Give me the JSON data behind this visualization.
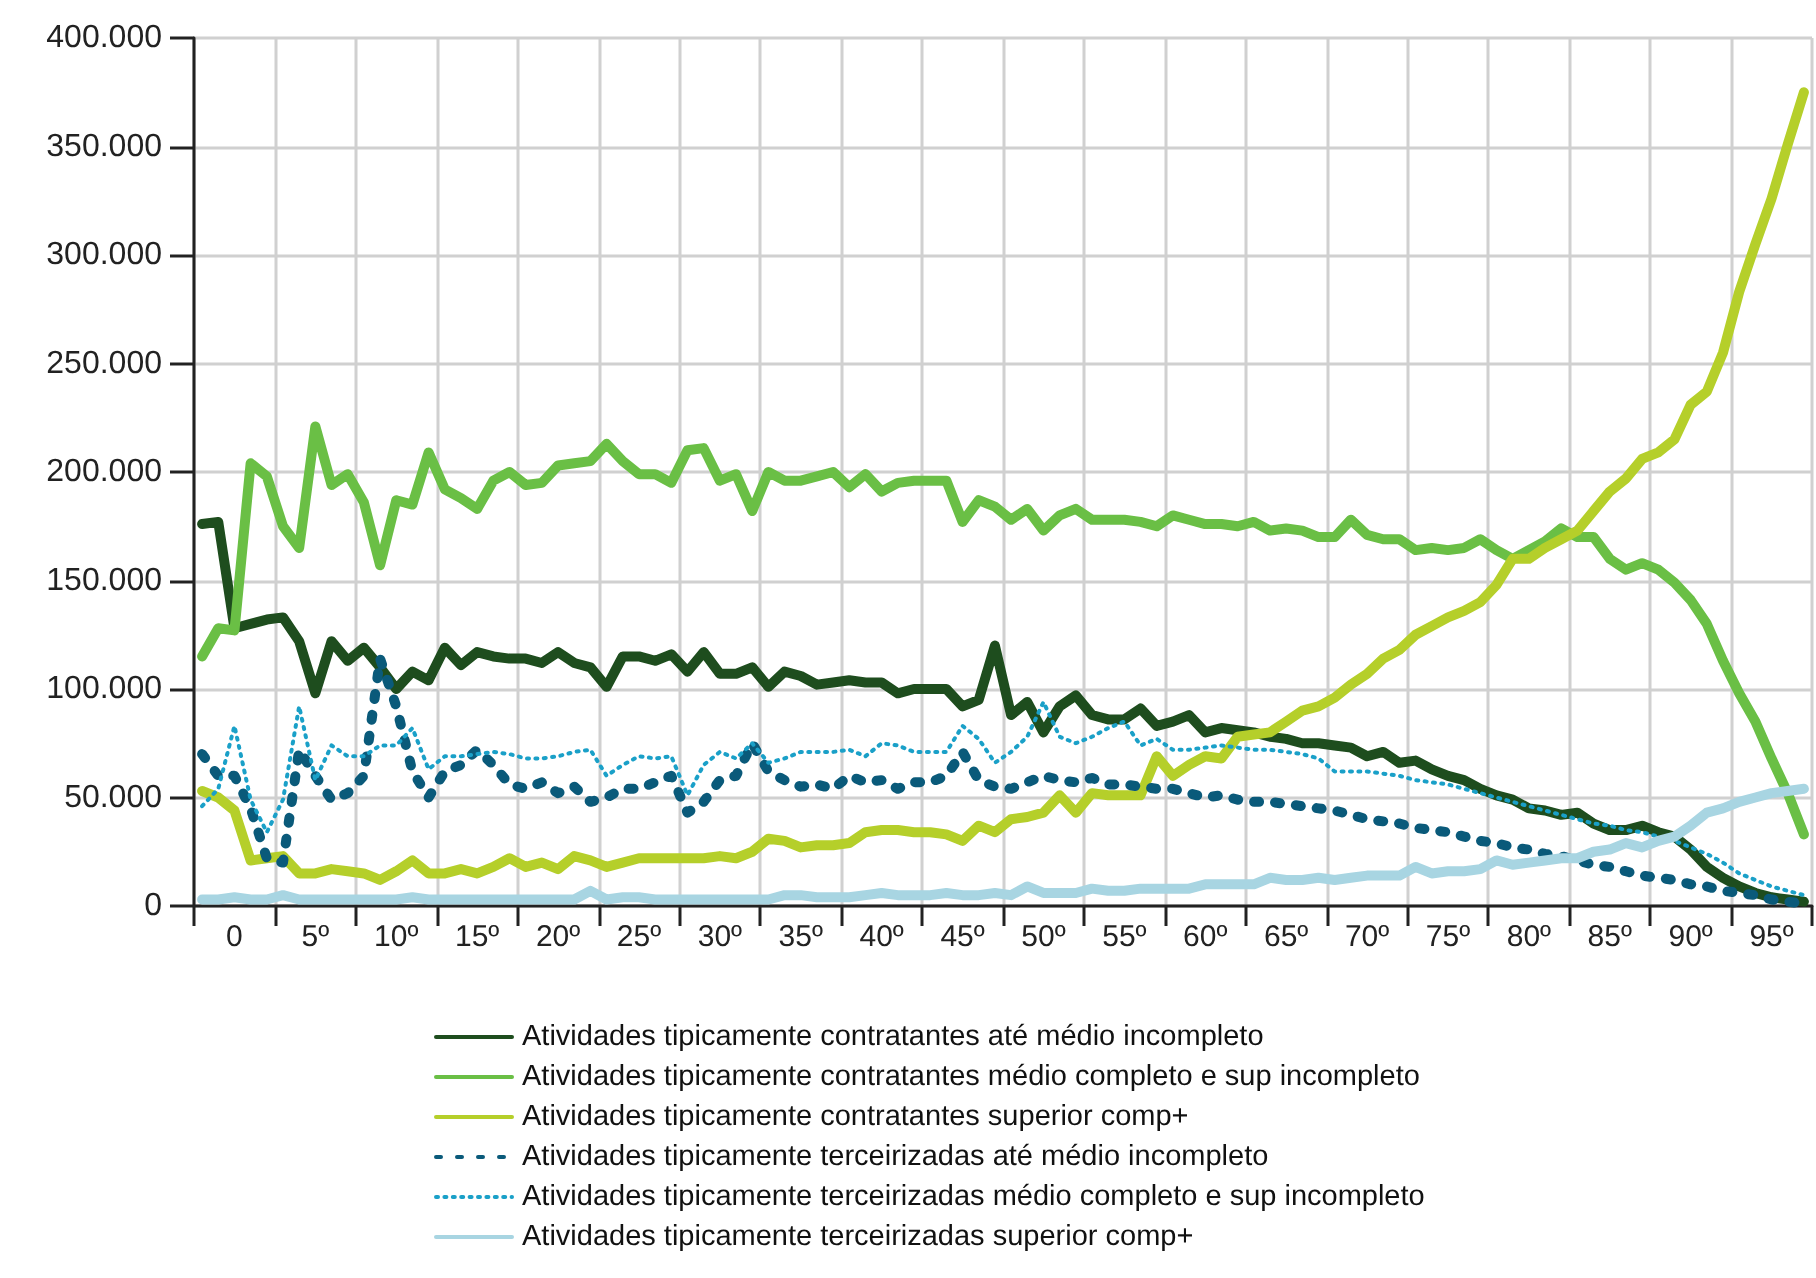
{
  "chart_data": {
    "type": "line",
    "categories": [
      null,
      null,
      "0",
      null,
      null,
      null,
      null,
      "5º",
      null,
      null,
      null,
      null,
      "10º",
      null,
      null,
      null,
      null,
      "15º",
      null,
      null,
      null,
      null,
      "20º",
      null,
      null,
      null,
      null,
      "25º",
      null,
      null,
      null,
      null,
      "30º",
      null,
      null,
      null,
      null,
      "35º",
      null,
      null,
      null,
      null,
      "40º",
      null,
      null,
      null,
      null,
      "45º",
      null,
      null,
      null,
      null,
      "50º",
      null,
      null,
      null,
      null,
      "55º",
      null,
      null,
      null,
      null,
      "60º",
      null,
      null,
      null,
      null,
      "65º",
      null,
      null,
      null,
      null,
      "70º",
      null,
      null,
      null,
      null,
      "75º",
      null,
      null,
      null,
      null,
      "80º",
      null,
      null,
      null,
      null,
      "85º",
      null,
      null,
      null,
      null,
      "90º",
      null,
      null,
      null,
      null,
      "95º",
      null,
      null
    ],
    "ylim": [
      0,
      400000
    ],
    "yticks": [
      {
        "value": 0,
        "label": "0"
      },
      {
        "value": 50000,
        "label": "50.000"
      },
      {
        "value": 100000,
        "label": "100.000"
      },
      {
        "value": 150000,
        "label": "150.000"
      },
      {
        "value": 200000,
        "label": "200.000"
      },
      {
        "value": 250000,
        "label": "250.000"
      },
      {
        "value": 300000,
        "label": "300.000"
      },
      {
        "value": 350000,
        "label": "350.000"
      },
      {
        "value": 400000,
        "label": "400.000"
      }
    ],
    "grid": true,
    "legend": "bottom",
    "marker": "none",
    "series": [
      {
        "name": "Atividades tipicamente contratantes até médio incompleto",
        "color": "#1e4d1e",
        "line_style": "solid",
        "values": [
          176000,
          177000,
          128000,
          130000,
          132000,
          133000,
          122000,
          98000,
          122000,
          113000,
          119000,
          110000,
          100000,
          108000,
          104000,
          119000,
          111000,
          117000,
          115000,
          114000,
          114000,
          112000,
          117000,
          112000,
          110000,
          101000,
          115000,
          115000,
          113000,
          116000,
          108000,
          117000,
          107000,
          107000,
          110000,
          101000,
          108000,
          106000,
          102000,
          103000,
          104000,
          103000,
          103000,
          98000,
          100000,
          100000,
          100000,
          92000,
          95000,
          120000,
          88000,
          94000,
          80000,
          92000,
          97000,
          88000,
          86000,
          86000,
          91000,
          83000,
          85000,
          88000,
          80000,
          82000,
          81000,
          80000,
          78000,
          77000,
          75000,
          75000,
          74000,
          73000,
          69000,
          71000,
          66000,
          67000,
          63000,
          60000,
          58000,
          54000,
          51000,
          49000,
          45000,
          44000,
          42000,
          43000,
          38000,
          35000,
          35000,
          37000,
          34000,
          32000,
          26000,
          18000,
          13000,
          9000,
          6000,
          4000,
          3000,
          2000
        ]
      },
      {
        "name": "Atividades tipicamente contratantes médio completo e sup incompleto",
        "color": "#6abf45",
        "line_style": "solid",
        "values": [
          115000,
          128000,
          127000,
          204000,
          198000,
          175000,
          165000,
          221000,
          194000,
          199000,
          186000,
          157000,
          187000,
          185000,
          209000,
          192000,
          188000,
          183000,
          196000,
          200000,
          194000,
          195000,
          203000,
          204000,
          205000,
          213000,
          205000,
          199000,
          199000,
          195000,
          210000,
          211000,
          196000,
          199000,
          182000,
          200000,
          196000,
          196000,
          198000,
          200000,
          193000,
          199000,
          191000,
          195000,
          196000,
          196000,
          196000,
          177000,
          187000,
          184000,
          178000,
          183000,
          173000,
          180000,
          183000,
          178000,
          178000,
          178000,
          177000,
          175000,
          180000,
          178000,
          176000,
          176000,
          175000,
          177000,
          173000,
          174000,
          173000,
          170000,
          170000,
          178000,
          171000,
          169000,
          169000,
          164000,
          165000,
          164000,
          165000,
          169000,
          164000,
          160000,
          164000,
          168000,
          174000,
          170000,
          170000,
          160000,
          155000,
          158000,
          155000,
          149000,
          141000,
          130000,
          113000,
          98000,
          85000,
          68000,
          52000,
          33000
        ]
      },
      {
        "name": "Atividades tipicamente contratantes superior comp+",
        "color": "#b5cf2a",
        "line_style": "solid",
        "values": [
          53000,
          50000,
          44000,
          21000,
          22000,
          23000,
          15000,
          15000,
          17000,
          16000,
          15000,
          12000,
          16000,
          21000,
          15000,
          15000,
          17000,
          15000,
          18000,
          22000,
          18000,
          20000,
          17000,
          23000,
          21000,
          18000,
          20000,
          22000,
          22000,
          22000,
          22000,
          22000,
          23000,
          22000,
          25000,
          31000,
          30000,
          27000,
          28000,
          28000,
          29000,
          34000,
          35000,
          35000,
          34000,
          34000,
          33000,
          30000,
          37000,
          34000,
          40000,
          41000,
          43000,
          51000,
          43000,
          52000,
          51000,
          51000,
          51000,
          69000,
          60000,
          65000,
          69000,
          68000,
          78000,
          79000,
          80000,
          85000,
          90000,
          92000,
          96000,
          102000,
          107000,
          114000,
          118000,
          125000,
          129000,
          133000,
          136000,
          140000,
          148000,
          160000,
          160000,
          165000,
          169000,
          173000,
          182000,
          191000,
          197000,
          206000,
          209000,
          215000,
          231000,
          237000,
          255000,
          283000,
          305000,
          326000,
          351000,
          375000
        ]
      },
      {
        "name": "Atividades tipicamente terceirizadas até médio incompleto",
        "color": "#0a5a7a",
        "line_style": "dotted",
        "values": [
          70000,
          60000,
          60000,
          45000,
          22000,
          20000,
          72000,
          60000,
          49000,
          52000,
          60000,
          114000,
          92000,
          62000,
          50000,
          62000,
          65000,
          72000,
          65000,
          56000,
          54000,
          57000,
          52000,
          55000,
          48000,
          50000,
          54000,
          54000,
          57000,
          60000,
          43000,
          48000,
          58000,
          60000,
          75000,
          62000,
          58000,
          55000,
          56000,
          54000,
          60000,
          57000,
          58000,
          54000,
          57000,
          57000,
          60000,
          71000,
          58000,
          55000,
          54000,
          57000,
          60000,
          58000,
          57000,
          59000,
          56000,
          56000,
          55000,
          54000,
          54000,
          52000,
          50000,
          51000,
          49000,
          48000,
          48000,
          47000,
          46000,
          45000,
          44000,
          42000,
          40000,
          39000,
          38000,
          36000,
          35000,
          34000,
          32000,
          30000,
          29000,
          27000,
          26000,
          24000,
          23000,
          21000,
          19000,
          18000,
          16000,
          14000,
          13000,
          12000,
          10000,
          9000,
          7000,
          6000,
          5000,
          3000,
          2000,
          1000
        ]
      },
      {
        "name": "Atividades tipicamente terceirizadas médio completo e sup incompleto",
        "color": "#1aa0c8",
        "line_style": "dotted",
        "values": [
          46000,
          54000,
          83000,
          49000,
          34000,
          49000,
          92000,
          58000,
          74000,
          69000,
          69000,
          74000,
          74000,
          82000,
          63000,
          69000,
          69000,
          70000,
          71000,
          70000,
          68000,
          68000,
          69000,
          71000,
          72000,
          60000,
          65000,
          69000,
          68000,
          69000,
          51000,
          65000,
          71000,
          68000,
          75000,
          66000,
          68000,
          71000,
          71000,
          71000,
          72000,
          69000,
          75000,
          74000,
          71000,
          71000,
          71000,
          83000,
          77000,
          66000,
          71000,
          78000,
          94000,
          78000,
          75000,
          78000,
          82000,
          85000,
          74000,
          77000,
          72000,
          72000,
          73000,
          74000,
          73000,
          72000,
          72000,
          71000,
          70000,
          68000,
          62000,
          62000,
          62000,
          61000,
          60000,
          58000,
          57000,
          56000,
          54000,
          52000,
          50000,
          48000,
          46000,
          44000,
          42000,
          40000,
          38000,
          37000,
          35000,
          34000,
          32000,
          30000,
          27000,
          24000,
          20000,
          15000,
          12000,
          9000,
          7000,
          5000
        ]
      },
      {
        "name": "Atividades tipicamente terceirizadas superior comp+",
        "color": "#a8d5e2",
        "line_style": "solid",
        "values": [
          3000,
          3000,
          4000,
          3000,
          3000,
          5000,
          3000,
          3000,
          3000,
          3000,
          3000,
          3000,
          3000,
          4000,
          3000,
          3000,
          3000,
          3000,
          3000,
          3000,
          3000,
          3000,
          3000,
          3000,
          7000,
          3000,
          4000,
          4000,
          3000,
          3000,
          3000,
          3000,
          3000,
          3000,
          3000,
          3000,
          5000,
          5000,
          4000,
          4000,
          4000,
          5000,
          6000,
          5000,
          5000,
          5000,
          6000,
          5000,
          5000,
          6000,
          5000,
          9000,
          6000,
          6000,
          6000,
          8000,
          7000,
          7000,
          8000,
          8000,
          8000,
          8000,
          10000,
          10000,
          10000,
          10000,
          13000,
          12000,
          12000,
          13000,
          12000,
          13000,
          14000,
          14000,
          14000,
          18000,
          15000,
          16000,
          16000,
          17000,
          21000,
          19000,
          20000,
          21000,
          22000,
          22000,
          25000,
          26000,
          29000,
          27000,
          30000,
          32000,
          37000,
          43000,
          45000,
          48000,
          50000,
          52000,
          53000,
          54000
        ]
      }
    ]
  }
}
